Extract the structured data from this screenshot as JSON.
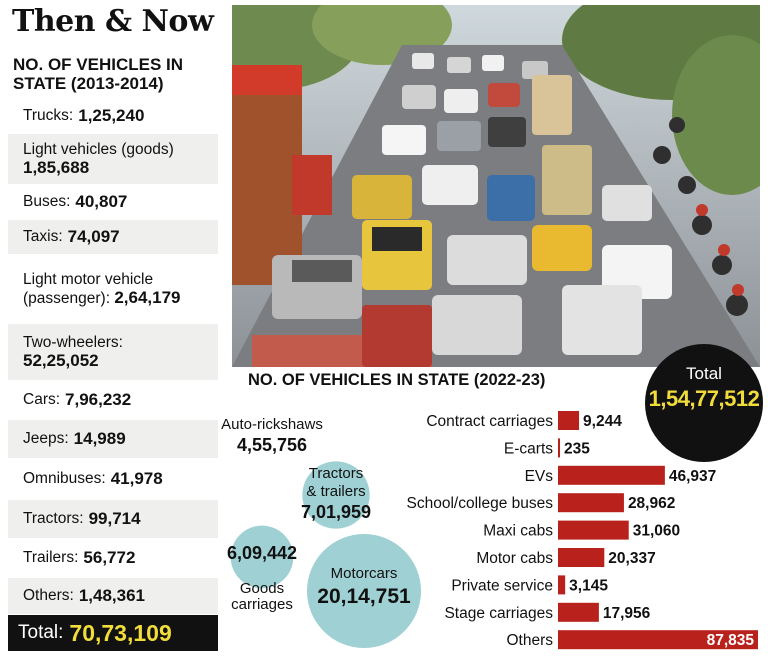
{
  "main_title": "Then & Now",
  "left_panel": {
    "heading": "NO. OF VEHICLES IN STATE (2013-2014)",
    "items": [
      {
        "label": "Trucks:",
        "value": "1,25,240"
      },
      {
        "label": "Light vehicles (goods)",
        "value": "1,85,688"
      },
      {
        "label": "Buses:",
        "value": "40,807"
      },
      {
        "label": "Taxis:",
        "value": "74,097"
      },
      {
        "label": "Light motor vehicle (passenger):",
        "value": "2,64,179"
      },
      {
        "label": "Two-wheelers:",
        "value": "52,25,052"
      },
      {
        "label": "Cars:",
        "value": "7,96,232"
      },
      {
        "label": "Jeeps:",
        "value": "14,989"
      },
      {
        "label": "Omnibuses:",
        "value": "41,978"
      },
      {
        "label": "Tractors:",
        "value": "99,714"
      },
      {
        "label": "Trailers:",
        "value": "56,772"
      },
      {
        "label": "Others:",
        "value": "1,48,361"
      }
    ],
    "total_label": "Total:",
    "total_value": "70,73,109"
  },
  "right_panel": {
    "heading": "NO. OF VEHICLES IN STATE (2022-23)",
    "total_label": "Total",
    "total_value": "1,54,77,512"
  },
  "colors": {
    "bar": "#b8211c",
    "bubble": "#9fd0d3",
    "total_bg": "#111111",
    "total_text": "#f0dc3a",
    "shade": "#efefed"
  },
  "chart_data": [
    {
      "type": "bar",
      "categories": [
        "Trucks",
        "Light vehicles (goods)",
        "Buses",
        "Taxis",
        "Light motor vehicle (passenger)",
        "Two-wheelers",
        "Cars",
        "Jeeps",
        "Omnibuses",
        "Tractors",
        "Trailers",
        "Others"
      ],
      "values": [
        125240,
        185688,
        40807,
        74097,
        264179,
        5225052,
        796232,
        14989,
        41978,
        99714,
        56772,
        148361
      ],
      "title": "NO. OF VEHICLES IN STATE (2013-2014)",
      "total": 7073109
    },
    {
      "type": "bar",
      "title": "NO. OF VEHICLES IN STATE (2022-23)",
      "orientation": "horizontal",
      "categories": [
        "Contract carriages",
        "E-carts",
        "EVs",
        "School/college buses",
        "Maxi cabs",
        "Motor cabs",
        "Private service",
        "Stage carriages",
        "Others"
      ],
      "values": [
        9244,
        235,
        46937,
        28962,
        31060,
        20337,
        3145,
        17956,
        87835
      ],
      "value_labels": [
        "9,244",
        "235",
        "46,937",
        "28,962",
        "31,060",
        "20,337",
        "3,145",
        "17,956",
        "87,835"
      ],
      "total": 15477512
    },
    {
      "type": "bubble",
      "categories": [
        "Auto-rickshaws",
        "Tractors & trailers",
        "Goods carriages",
        "Motorcars"
      ],
      "values": [
        455756,
        701959,
        609442,
        2014751
      ],
      "value_labels": [
        "4,55,756",
        "7,01,959",
        "6,09,442",
        "20,14,751"
      ]
    }
  ]
}
